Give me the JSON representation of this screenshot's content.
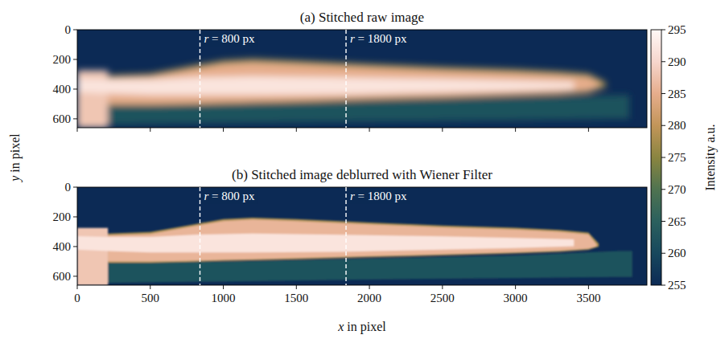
{
  "chart_data": {
    "type": "heatmap",
    "xlabel": "x in pixel",
    "ylabel": "y in pixel",
    "colorbar": {
      "label": "Intensity a.u.",
      "range": [
        255,
        295
      ],
      "ticks": [
        255,
        260,
        265,
        270,
        275,
        280,
        285,
        290,
        295
      ],
      "colors": [
        "#0c2a55",
        "#17485d",
        "#2b605e",
        "#4f7350",
        "#8a8540",
        "#c29559",
        "#e6ad8c",
        "#f6d6cd",
        "#fff8f6"
      ]
    },
    "annotations": [
      {
        "x": 840,
        "label": "r = 800 px"
      },
      {
        "x": 1840,
        "label": "r = 1800 px"
      }
    ],
    "panels": [
      {
        "title": "(a) Stitched raw image",
        "xlim": [
          0,
          3900
        ],
        "ylim": [
          660,
          0
        ],
        "xticks": [
          0,
          500,
          1000,
          1500,
          2000,
          2500,
          3000,
          3500
        ],
        "yticks": [
          0,
          200,
          400,
          600
        ],
        "tick_labels": "y",
        "background": 255,
        "layers": [
          {
            "x": [
              210,
              1000,
              2000,
              3000,
              3700,
              3780
            ],
            "y_top": [
              500,
              500,
              480,
              460,
              440,
              440
            ],
            "y_bottom": [
              640,
              630,
              620,
              610,
              600,
              600
            ],
            "intensity": 262
          },
          {
            "x": [
              210,
              500,
              800,
              1000,
              1200,
              1500,
              2000,
              2500,
              3000,
              3300,
              3500,
              3620
            ],
            "y_top": [
              305,
              295,
              240,
              205,
              195,
              207,
              230,
              250,
              265,
              280,
              295,
              355
            ],
            "y_bottom": [
              510,
              510,
              505,
              500,
              495,
              490,
              475,
              462,
              448,
              438,
              425,
              385
            ],
            "intensity": 277
          },
          {
            "x": [
              210,
              500,
              800,
              1000,
              1200,
              1500,
              2000,
              2500,
              3000,
              3300,
              3500,
              3580
            ],
            "y_top": [
              325,
              315,
              265,
              232,
              222,
              234,
              256,
              276,
              292,
              306,
              320,
              360
            ],
            "y_bottom": [
              500,
              500,
              495,
              490,
              485,
              478,
              462,
              450,
              436,
              426,
              410,
              380
            ],
            "intensity": 285
          },
          {
            "x": [
              0,
              210
            ],
            "y_top": [
              275,
              275
            ],
            "y_bottom": [
              660,
              660
            ],
            "intensity": 288
          },
          {
            "x": [
              0,
              210,
              500,
              800,
              1200,
              1800,
              2500,
              3000,
              3400
            ],
            "y_top": [
              330,
              335,
              335,
              320,
              312,
              320,
              332,
              342,
              352
            ],
            "y_bottom": [
              420,
              430,
              440,
              440,
              440,
              435,
              420,
              410,
              398
            ],
            "intensity": 292
          }
        ]
      },
      {
        "title": "(b) Stitched image deblurred with Wiener Filter",
        "xlim": [
          0,
          3900
        ],
        "ylim": [
          660,
          0
        ],
        "xticks": [
          0,
          500,
          1000,
          1500,
          2000,
          2500,
          3000,
          3500
        ],
        "yticks": [
          0,
          200,
          400,
          600
        ],
        "background": 255,
        "layers": [
          {
            "x": [
              210,
              1000,
              2000,
              3000,
              3700,
              3800
            ],
            "y_top": [
              500,
              500,
              480,
              460,
              430,
              430
            ],
            "y_bottom": [
              645,
              635,
              622,
              612,
              605,
              605
            ],
            "intensity": 262
          },
          {
            "x": [
              210,
              500,
              800,
              1000,
              1200,
              1500,
              2000,
              2500,
              3000,
              3300,
              3500,
              3570
            ],
            "y_top": [
              312,
              302,
              250,
              215,
              205,
              215,
              238,
              258,
              273,
              288,
              305,
              380
            ],
            "y_bottom": [
              508,
              508,
              502,
              497,
              492,
              486,
              472,
              460,
              446,
              436,
              422,
              400
            ],
            "intensity": 278
          },
          {
            "x": [
              210,
              500,
              800,
              1000,
              1200,
              1500,
              2000,
              2500,
              3000,
              3300,
              3500,
              3555
            ],
            "y_top": [
              325,
              315,
              262,
              228,
              218,
              228,
              250,
              270,
              286,
              300,
              318,
              385
            ],
            "y_bottom": [
              500,
              500,
              495,
              490,
              485,
              478,
              464,
              452,
              438,
              428,
              414,
              398
            ],
            "intensity": 286
          },
          {
            "x": [
              0,
              210
            ],
            "y_top": [
              275,
              275
            ],
            "y_bottom": [
              660,
              660
            ],
            "intensity": 288
          },
          {
            "x": [
              0,
              210,
              500,
              800,
              1200,
              1800,
              2500,
              3000,
              3400
            ],
            "y_top": [
              330,
              335,
              335,
              320,
              312,
              320,
              332,
              342,
              352
            ],
            "y_bottom": [
              420,
              430,
              440,
              440,
              440,
              435,
              420,
              410,
              398
            ],
            "intensity": 292
          }
        ]
      }
    ]
  }
}
